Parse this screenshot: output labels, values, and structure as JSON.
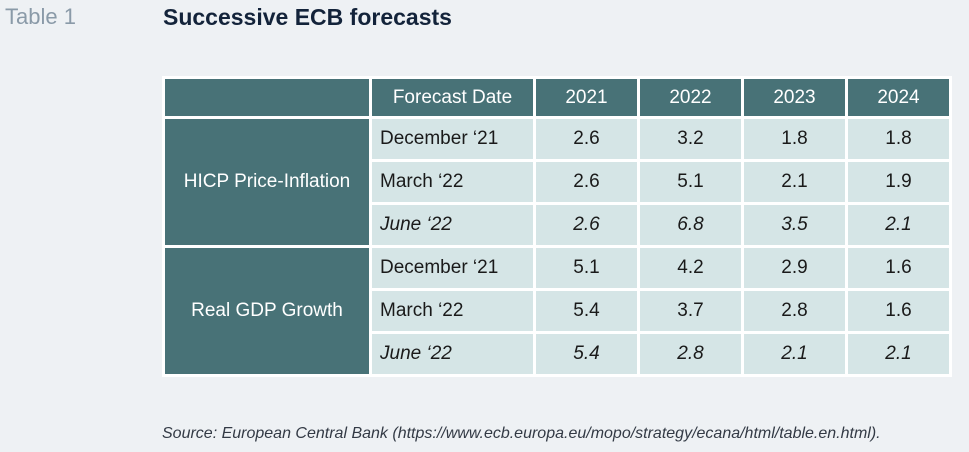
{
  "label": "Table 1",
  "title": "Successive ECB forecasts",
  "table": {
    "header": [
      "",
      "Forecast Date",
      "2021",
      "2022",
      "2023",
      "2024"
    ],
    "groups": [
      {
        "name": "HICP Price-Inflation",
        "rows": [
          {
            "date": "December ‘21",
            "values": [
              "2.6",
              "3.2",
              "1.8",
              "1.8"
            ],
            "italic": false
          },
          {
            "date": "March ‘22",
            "values": [
              "2.6",
              "5.1",
              "2.1",
              "1.9"
            ],
            "italic": false
          },
          {
            "date": "June ‘22",
            "values": [
              "2.6",
              "6.8",
              "3.5",
              "2.1"
            ],
            "italic": true
          }
        ]
      },
      {
        "name": "Real GDP Growth",
        "rows": [
          {
            "date": "December ‘21",
            "values": [
              "5.1",
              "4.2",
              "2.9",
              "1.6"
            ],
            "italic": false
          },
          {
            "date": "March ‘22",
            "values": [
              "5.4",
              "3.7",
              "2.8",
              "1.6"
            ],
            "italic": false
          },
          {
            "date": "June ‘22",
            "values": [
              "5.4",
              "2.8",
              "2.1",
              "2.1"
            ],
            "italic": true
          }
        ]
      }
    ]
  },
  "source": "Source: European Central Bank (https://www.ecb.europa.eu/mopo/strategy/ecana/html/table.en.html)."
}
